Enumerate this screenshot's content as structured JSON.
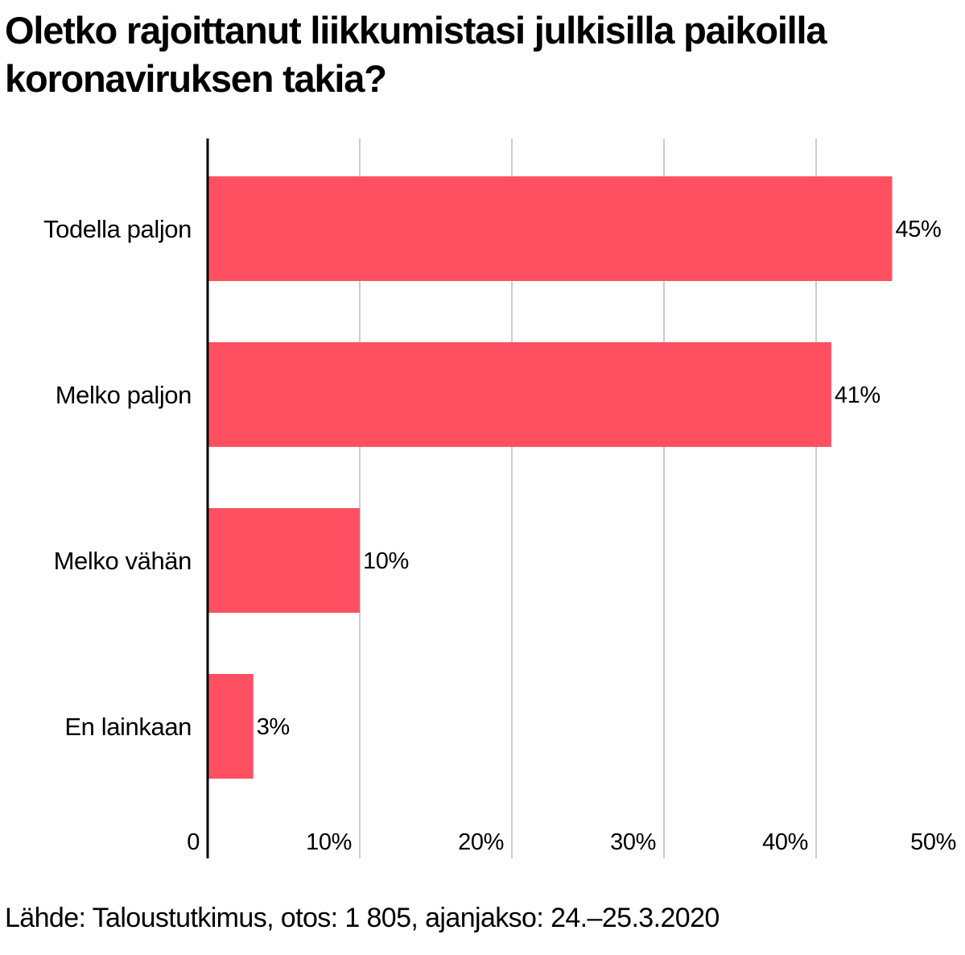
{
  "chart_data": {
    "type": "bar",
    "orientation": "horizontal",
    "title": "Oletko rajoittanut liikkumistasi julkisilla paikoilla koronaviruksen takia?",
    "categories": [
      "Todella paljon",
      "Melko paljon",
      "Melko vähän",
      "En lainkaan"
    ],
    "values": [
      45,
      41,
      10,
      3
    ],
    "value_labels": [
      "45%",
      "41%",
      "10%",
      "3%"
    ],
    "xlim": [
      0,
      50
    ],
    "ticks": [
      0,
      10,
      20,
      30,
      40,
      50
    ],
    "tick_labels": [
      "0",
      "10%",
      "20%",
      "30%",
      "40%",
      "50%"
    ],
    "grid": "vertical",
    "bar_color": "#ff5061",
    "grid_color": "#cccccc",
    "source": "Lähde: Taloustutkimus, otos: 1 805, ajanjakso: 24.–25.3.2020"
  }
}
